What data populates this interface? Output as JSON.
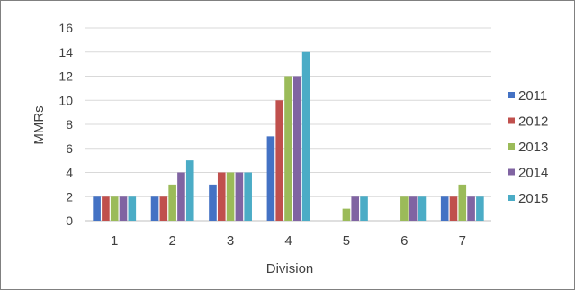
{
  "chart_data": {
    "type": "bar",
    "categories": [
      "1",
      "2",
      "3",
      "4",
      "5",
      "6",
      "7"
    ],
    "series": [
      {
        "name": "2011",
        "color": "#4472C4",
        "values": [
          2,
          2,
          3,
          7,
          null,
          null,
          2
        ]
      },
      {
        "name": "2012",
        "color": "#C0504D",
        "values": [
          2,
          2,
          4,
          10,
          null,
          null,
          2
        ]
      },
      {
        "name": "2013",
        "color": "#9BBB59",
        "values": [
          2,
          3,
          4,
          12,
          1,
          2,
          3
        ]
      },
      {
        "name": "2014",
        "color": "#8064A2",
        "values": [
          2,
          4,
          4,
          12,
          2,
          2,
          2
        ]
      },
      {
        "name": "2015",
        "color": "#4BACC6",
        "values": [
          2,
          5,
          4,
          14,
          2,
          2,
          2
        ]
      }
    ],
    "title": "",
    "xlabel": "Division",
    "ylabel": "MMRs",
    "ylim": [
      0,
      16
    ],
    "yticks": [
      0,
      2,
      4,
      6,
      8,
      10,
      12,
      14,
      16
    ],
    "grid": true,
    "legend": "right"
  }
}
